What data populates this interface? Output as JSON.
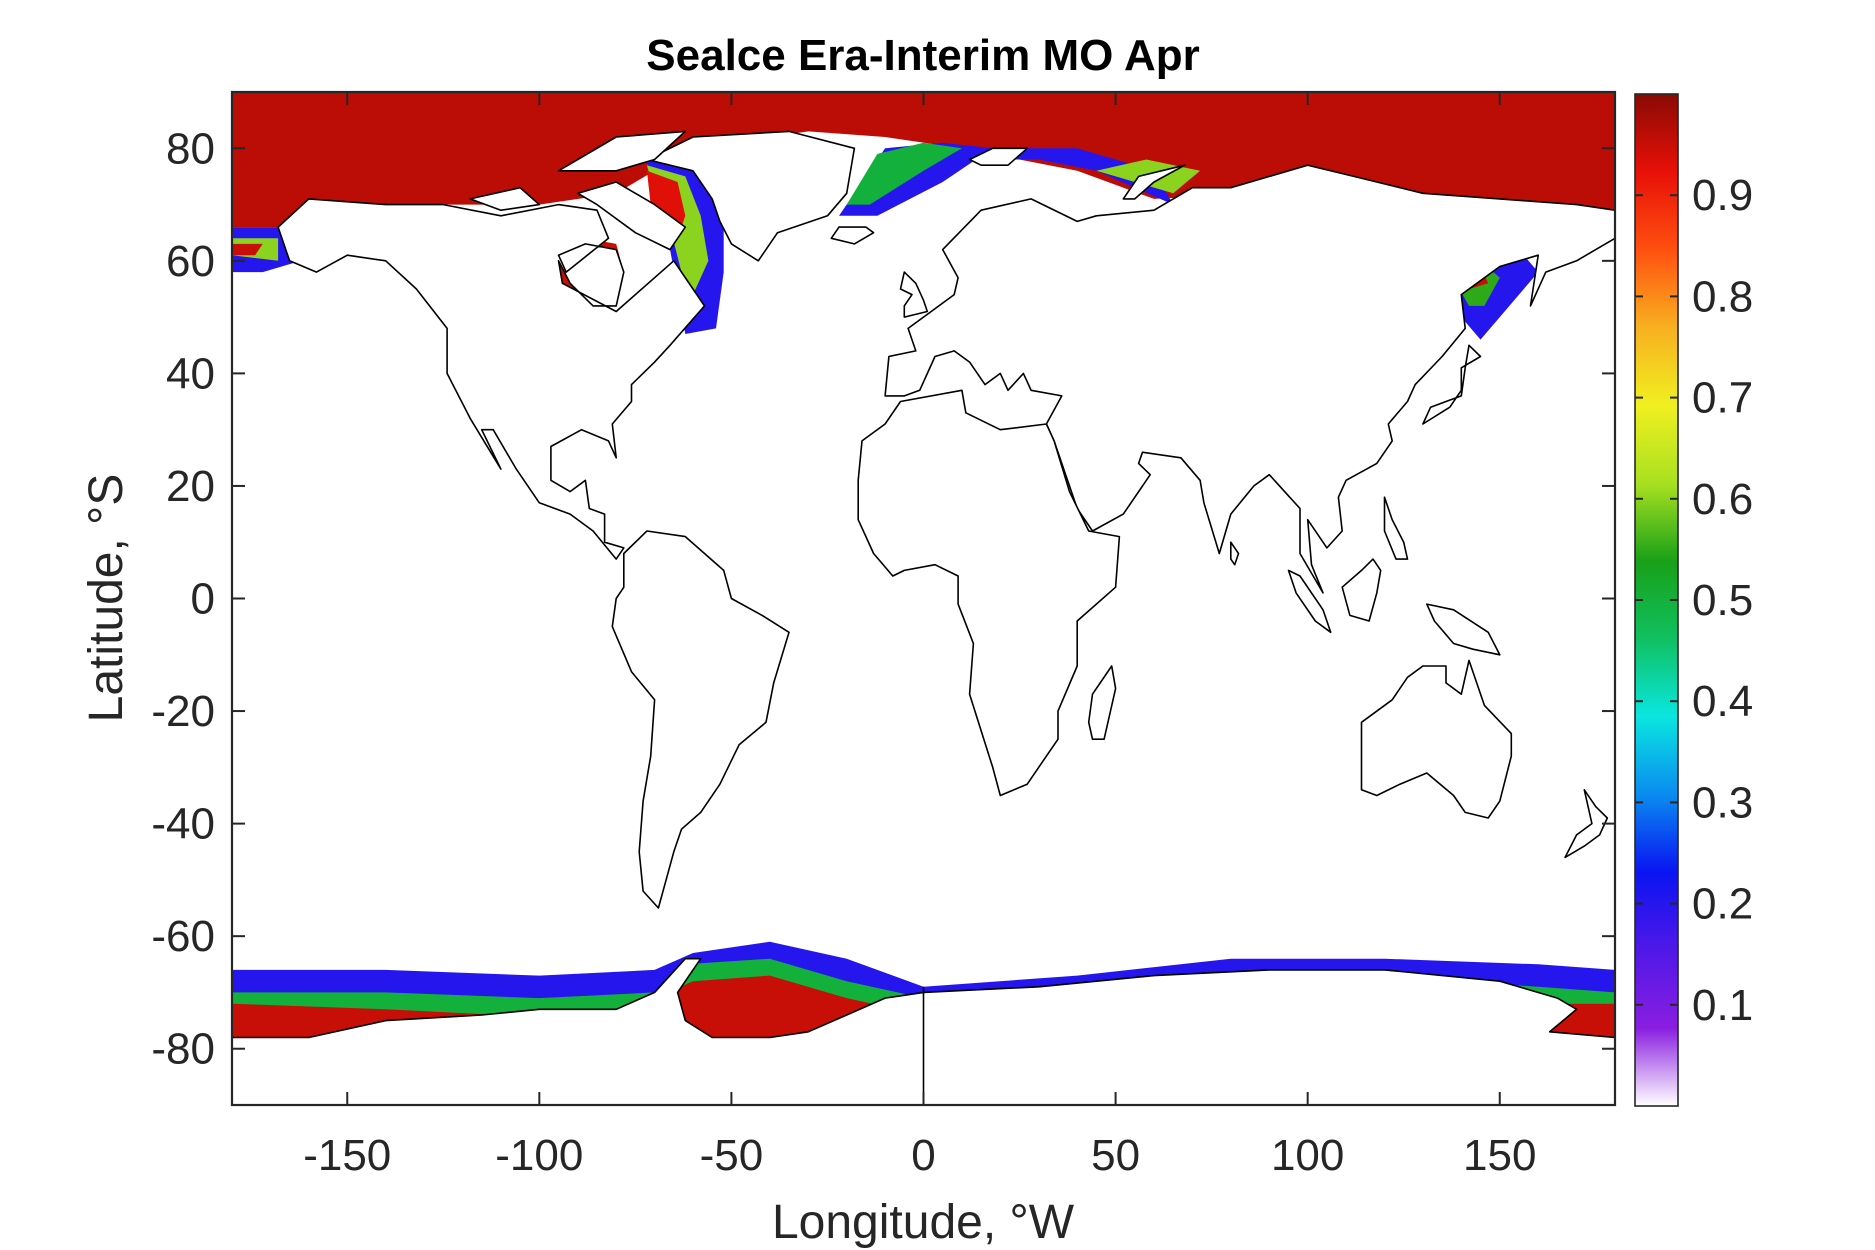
{
  "chart_data": {
    "type": "heatmap",
    "title": "Sealce Era-Interim MO Apr",
    "xlabel": "Longitude, °W",
    "ylabel": "Latitude, °S",
    "xlim": [
      -180,
      180
    ],
    "ylim": [
      -90,
      90
    ],
    "x_ticks": [
      -150,
      -100,
      -50,
      0,
      50,
      100,
      150
    ],
    "x_tick_labels": [
      "-150",
      "-100",
      "-50",
      "0",
      "50",
      "100",
      "150"
    ],
    "y_ticks": [
      80,
      60,
      40,
      20,
      0,
      -20,
      -40,
      -60,
      -80
    ],
    "y_tick_labels": [
      "80",
      "60",
      "40",
      "20",
      "0",
      "-20",
      "-40",
      "-60",
      "-80"
    ],
    "grid": false,
    "colorbar": {
      "colormap": "rainbow (purple-blue-cyan-green-yellow-orange-red-dark red)",
      "clim": [
        0,
        1
      ],
      "ticks": [
        0.1,
        0.2,
        0.3,
        0.4,
        0.5,
        0.6,
        0.7,
        0.8,
        0.9
      ],
      "tick_labels": [
        "0.1",
        "0.2",
        "0.3",
        "0.4",
        "0.5",
        "0.6",
        "0.7",
        "0.8",
        "0.9"
      ],
      "stops": [
        "#ffffff",
        "#8a1ee0",
        "#5018e8",
        "#0a14f2",
        "#0a8cf0",
        "#0ae6e0",
        "#10c060",
        "#18a018",
        "#a8e020",
        "#f0f020",
        "#f8b020",
        "#ff5010",
        "#e81008",
        "#8a0a04"
      ]
    },
    "regions": [
      {
        "name": "Arctic Ocean",
        "lon": [
          -180,
          180
        ],
        "lat": [
          68,
          90
        ],
        "value": 0.95
      },
      {
        "name": "Hudson Bay",
        "lon": [
          -95,
          -78
        ],
        "lat": [
          51,
          65
        ],
        "value": 0.95
      },
      {
        "name": "Baffin Bay / Labrador Sea",
        "lon": [
          -75,
          -50
        ],
        "lat": [
          50,
          78
        ],
        "value": 0.6
      },
      {
        "name": "Greenland Sea",
        "lon": [
          -20,
          15
        ],
        "lat": [
          66,
          80
        ],
        "value": 0.5
      },
      {
        "name": "Barents Sea",
        "lon": [
          15,
          60
        ],
        "lat": [
          68,
          78
        ],
        "value": 0.3
      },
      {
        "name": "Sea of Okhotsk",
        "lon": [
          137,
          160
        ],
        "lat": [
          45,
          60
        ],
        "value": 0.6
      },
      {
        "name": "Bering Sea",
        "lon": [
          -180,
          -160
        ],
        "lat": [
          58,
          65
        ],
        "value": 0.6
      },
      {
        "name": "Weddell Sea",
        "lon": [
          -60,
          -20
        ],
        "lat": [
          -78,
          -62
        ],
        "value": 0.95
      },
      {
        "name": "Ross Sea",
        "lon": [
          -180,
          -150
        ],
        "lat": [
          -80,
          -70
        ],
        "value": 0.95
      },
      {
        "name": "Antarctic margin",
        "lon": [
          -180,
          180
        ],
        "lat": [
          -72,
          -64
        ],
        "value": 0.4
      }
    ]
  }
}
